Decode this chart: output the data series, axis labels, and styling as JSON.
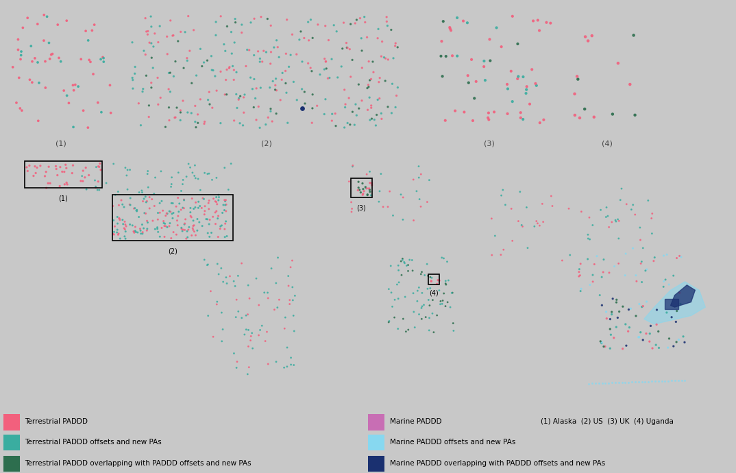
{
  "background_color": "#c8c8c8",
  "land_color": "#f0f0f0",
  "ocean_color": "#c8c8c8",
  "border_color": "#d0d0d0",
  "legend_items_left": [
    {
      "label": "Terrestrial PADDD",
      "color": "#f2607d"
    },
    {
      "label": "Terrestrial PADDD offsets and new PAs",
      "color": "#3aada0"
    },
    {
      "label": "Terrestrial PADDD overlapping with PADDD offsets and new PAs",
      "color": "#2d6e4e"
    }
  ],
  "legend_items_right": [
    {
      "label": "Marine PADDD",
      "color": "#c86eb4"
    },
    {
      "label": "Marine PADDD offsets and new PAs",
      "color": "#87d8f0"
    },
    {
      "label": "Marine PADDD overlapping with PADDD offsets and new PAs",
      "color": "#1a3070"
    }
  ],
  "region_note": "(1) Alaska  (2) US  (3) UK  (4) Uganda",
  "fig_width": 10.74,
  "fig_height": 6.9
}
